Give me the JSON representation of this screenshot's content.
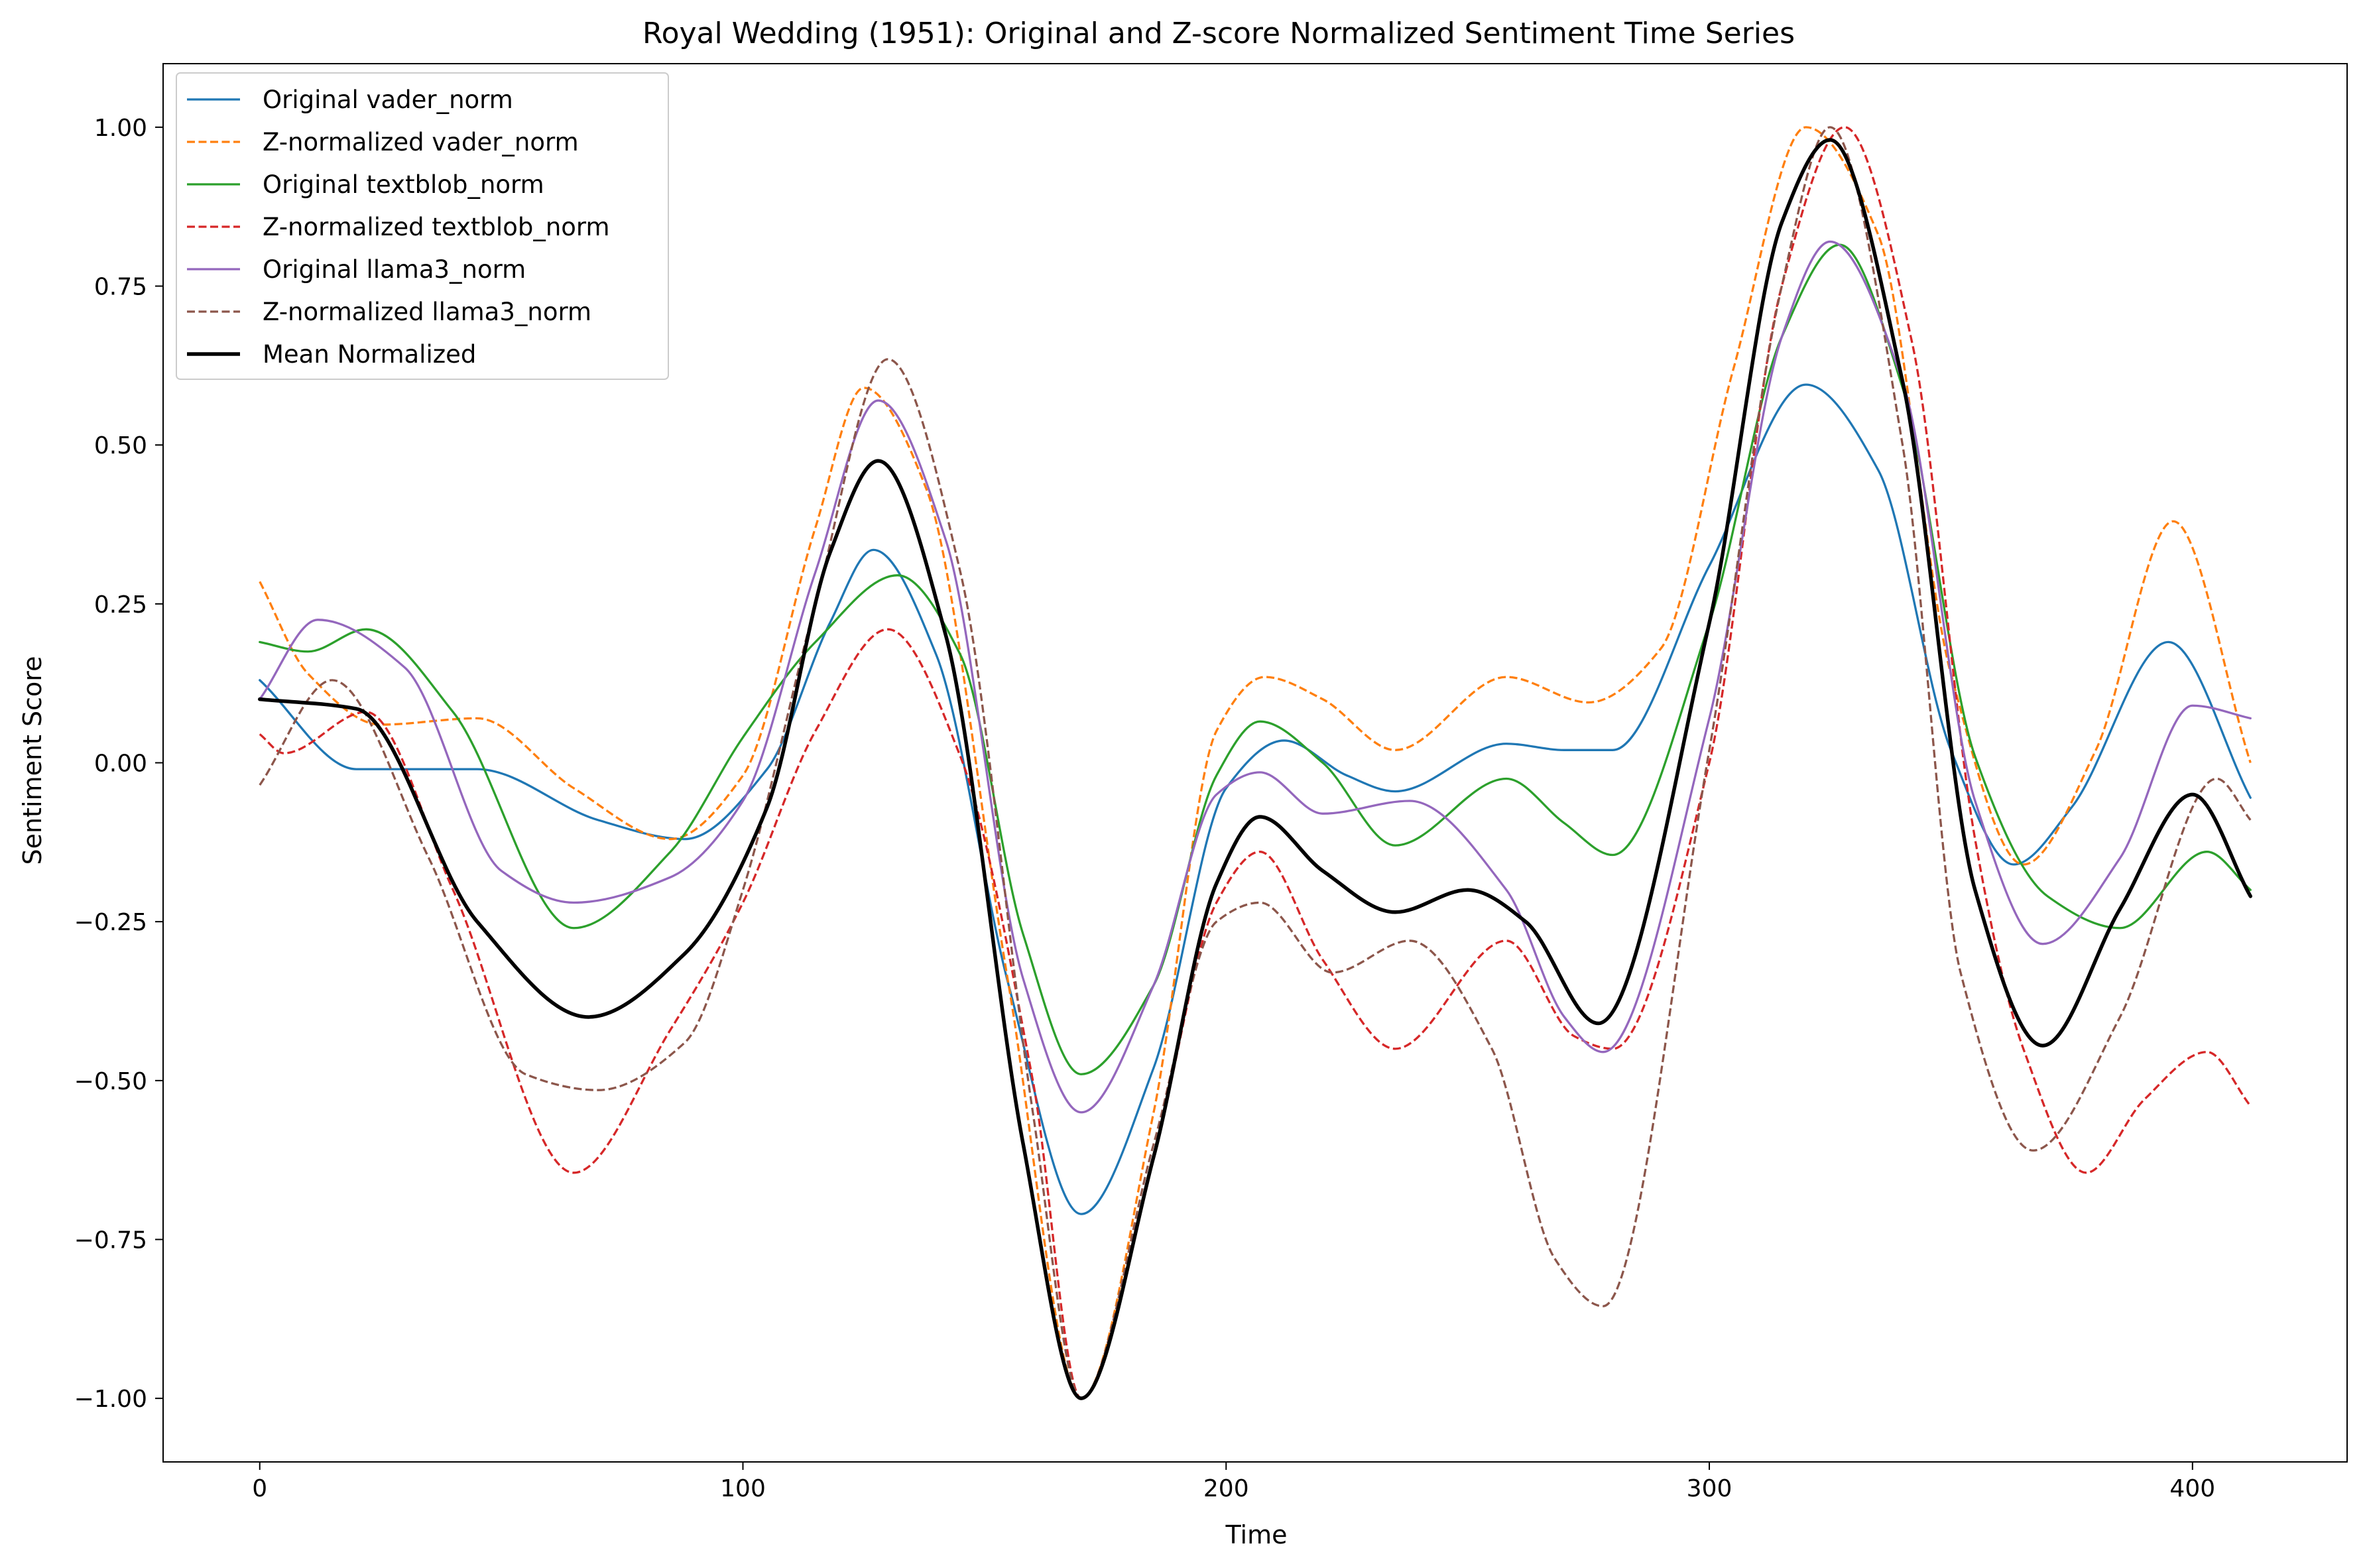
{
  "chart_data": {
    "type": "line",
    "title": "Royal Wedding (1951): Original and Z-score Normalized Sentiment Time Series",
    "xlabel": "Time",
    "ylabel": "Sentiment Score",
    "xlim": [
      -20,
      432
    ],
    "ylim": [
      -1.1,
      1.1
    ],
    "xticks": [
      0,
      100,
      200,
      300,
      400
    ],
    "yticks": [
      1.0,
      0.75,
      0.5,
      0.25,
      0.0,
      -0.25,
      -0.5,
      -0.75,
      -1.0
    ],
    "ytick_labels": [
      "1.00",
      "0.75",
      "0.50",
      "0.25",
      "0.00",
      "−0.25",
      "−0.50",
      "−0.75",
      "−1.00"
    ],
    "xtick_labels": [
      "0",
      "100",
      "200",
      "300",
      "400"
    ],
    "grid": false,
    "legend_position": "top-left",
    "series": [
      {
        "name": "Original vader_norm",
        "color": "#1f77b4",
        "style": "solid",
        "width": 1.5,
        "x": [
          0,
          20,
          45,
          70,
          88,
          105,
          118,
          127,
          140,
          155,
          170,
          185,
          200,
          212,
          225,
          235,
          258,
          270,
          280,
          300,
          320,
          335,
          350,
          363,
          375,
          395,
          412
        ],
        "y": [
          0.13,
          -0.01,
          -0.01,
          -0.09,
          -0.12,
          -0.01,
          0.22,
          0.335,
          0.17,
          -0.35,
          -0.71,
          -0.48,
          -0.04,
          0.035,
          -0.02,
          -0.045,
          0.03,
          0.02,
          0.02,
          0.31,
          0.595,
          0.46,
          0.02,
          -0.16,
          -0.07,
          0.19,
          -0.055
        ]
      },
      {
        "name": "Z-normalized vader_norm",
        "color": "#ff7f0e",
        "style": "dashed",
        "width": 1.5,
        "x": [
          0,
          10,
          25,
          45,
          65,
          85,
          100,
          115,
          125,
          138,
          155,
          170,
          185,
          198,
          208,
          220,
          235,
          258,
          275,
          290,
          305,
          320,
          335,
          350,
          365,
          380,
          396,
          412
        ],
        "y": [
          0.285,
          0.14,
          0.06,
          0.07,
          -0.04,
          -0.12,
          -0.02,
          0.37,
          0.59,
          0.43,
          -0.35,
          -1.0,
          -0.55,
          0.05,
          0.135,
          0.1,
          0.02,
          0.135,
          0.095,
          0.18,
          0.62,
          1.0,
          0.83,
          0.14,
          -0.16,
          0.02,
          0.38,
          0.0
        ]
      },
      {
        "name": "Original textblob_norm",
        "color": "#2ca02c",
        "style": "solid",
        "width": 1.5,
        "x": [
          0,
          10,
          22,
          40,
          65,
          85,
          100,
          115,
          132,
          145,
          158,
          170,
          185,
          198,
          207,
          220,
          235,
          258,
          270,
          280,
          300,
          315,
          327,
          340,
          355,
          370,
          385,
          403,
          412
        ],
        "y": [
          0.19,
          0.175,
          0.21,
          0.08,
          -0.26,
          -0.14,
          0.04,
          0.19,
          0.295,
          0.17,
          -0.27,
          -0.49,
          -0.35,
          -0.02,
          0.065,
          0.0,
          -0.13,
          -0.025,
          -0.095,
          -0.145,
          0.22,
          0.67,
          0.815,
          0.59,
          0.01,
          -0.21,
          -0.26,
          -0.14,
          -0.2
        ]
      },
      {
        "name": "Z-normalized textblob_norm",
        "color": "#d62728",
        "style": "dashed",
        "width": 1.5,
        "x": [
          0,
          5,
          22,
          40,
          65,
          85,
          100,
          115,
          130,
          145,
          160,
          170,
          185,
          198,
          207,
          220,
          235,
          258,
          272,
          280,
          300,
          315,
          328,
          342,
          355,
          365,
          378,
          390,
          403,
          412
        ],
        "y": [
          0.045,
          0.015,
          0.08,
          -0.2,
          -0.645,
          -0.42,
          -0.22,
          0.05,
          0.21,
          0.01,
          -0.5,
          -1.0,
          -0.62,
          -0.22,
          -0.14,
          -0.31,
          -0.45,
          -0.28,
          -0.43,
          -0.45,
          0.0,
          0.75,
          1.0,
          0.66,
          -0.12,
          -0.45,
          -0.645,
          -0.53,
          -0.455,
          -0.54
        ]
      },
      {
        "name": "Original llama3_norm",
        "color": "#9467bd",
        "style": "solid",
        "width": 1.5,
        "x": [
          0,
          12,
          30,
          50,
          65,
          85,
          100,
          115,
          128,
          142,
          158,
          170,
          185,
          198,
          207,
          220,
          238,
          258,
          270,
          278,
          300,
          315,
          325,
          340,
          355,
          369,
          385,
          400,
          412
        ],
        "y": [
          0.1,
          0.225,
          0.15,
          -0.17,
          -0.22,
          -0.18,
          -0.06,
          0.3,
          0.57,
          0.35,
          -0.34,
          -0.55,
          -0.35,
          -0.05,
          -0.015,
          -0.08,
          -0.06,
          -0.2,
          -0.4,
          -0.455,
          0.07,
          0.67,
          0.82,
          0.6,
          -0.06,
          -0.285,
          -0.15,
          0.09,
          0.07
        ]
      },
      {
        "name": "Z-normalized llama3_norm",
        "color": "#8c564b",
        "style": "dashed",
        "width": 1.5,
        "x": [
          0,
          15,
          35,
          55,
          70,
          88,
          100,
          115,
          130,
          145,
          160,
          170,
          185,
          198,
          207,
          222,
          238,
          255,
          268,
          278,
          300,
          315,
          325,
          340,
          352,
          367,
          385,
          405,
          412
        ],
        "y": [
          -0.035,
          0.13,
          -0.15,
          -0.49,
          -0.515,
          -0.44,
          -0.2,
          0.25,
          0.635,
          0.3,
          -0.55,
          -1.0,
          -0.6,
          -0.25,
          -0.22,
          -0.33,
          -0.28,
          -0.45,
          -0.78,
          -0.855,
          0.02,
          0.75,
          1.0,
          0.5,
          -0.33,
          -0.61,
          -0.4,
          -0.025,
          -0.09
        ]
      },
      {
        "name": "Mean Normalized",
        "color": "#000000",
        "style": "solid",
        "width": 2.5,
        "x": [
          0,
          20,
          45,
          68,
          88,
          105,
          118,
          128,
          142,
          158,
          170,
          185,
          198,
          207,
          220,
          235,
          250,
          262,
          277,
          300,
          315,
          325,
          340,
          355,
          369,
          385,
          400,
          412
        ],
        "y": [
          0.1,
          0.085,
          -0.25,
          -0.4,
          -0.3,
          -0.07,
          0.33,
          0.475,
          0.2,
          -0.6,
          -1.0,
          -0.62,
          -0.19,
          -0.085,
          -0.17,
          -0.235,
          -0.2,
          -0.25,
          -0.41,
          0.22,
          0.85,
          0.98,
          0.6,
          -0.2,
          -0.445,
          -0.23,
          -0.05,
          -0.21
        ]
      }
    ]
  }
}
